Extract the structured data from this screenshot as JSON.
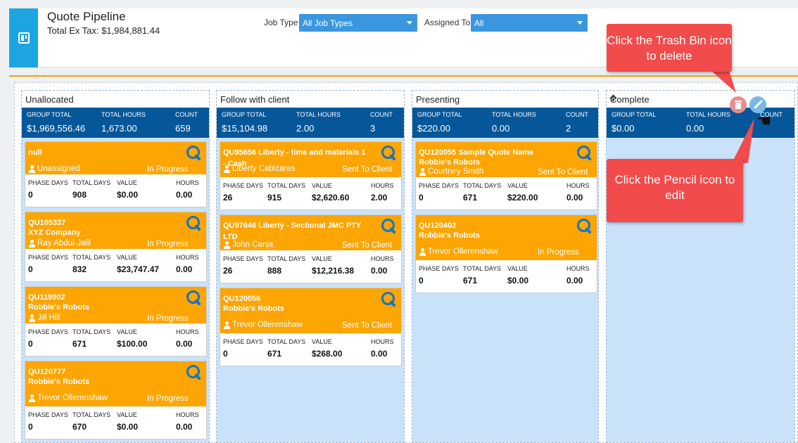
{
  "header": {
    "title": "Quote Pipeline",
    "total": "Total Ex Tax: $1,984,881.44",
    "job_type_label": "Job Type",
    "job_type_value": "All Job Types",
    "assigned_label": "Assigned To",
    "assigned_value": "All"
  },
  "stat_labels": {
    "group_total": "GROUP TOTAL",
    "total_hours": "TOTAL HOURS",
    "count": "COUNT"
  },
  "metric_labels": {
    "phase_days": "PHASE DAYS",
    "total_days": "TOTAL DAYS",
    "value": "VALUE",
    "hours": "HOURS"
  },
  "columns": [
    {
      "title": "Unallocated",
      "group_total": "$1,969,556.46",
      "total_hours": "1,673.00",
      "count": "659",
      "cards": [
        {
          "id": "null",
          "client": "",
          "person": "Unassigned",
          "status": "In Progress",
          "phase_days": "0",
          "total_days": "908",
          "value": "$0.00",
          "hours": "0.00"
        },
        {
          "id": "QU105337",
          "client": "XYZ Company",
          "person": "Ray Abdul-Jalil",
          "status": "In Progress",
          "phase_days": "0",
          "total_days": "832",
          "value": "$23,747.47",
          "hours": "0.00"
        },
        {
          "id": "QU119902",
          "client": "Robbie's Robots",
          "person": "Jill Hill",
          "status": "In Progress",
          "phase_days": "0",
          "total_days": "671",
          "value": "$100.00",
          "hours": "0.00"
        },
        {
          "id": "QU120777",
          "client": "Robbie's Robots",
          "person": "Trevor Ollerenshaw",
          "status": "In Progress",
          "phase_days": "0",
          "total_days": "670",
          "value": "$0.00",
          "hours": "0.00"
        }
      ]
    },
    {
      "title": "Follow with client",
      "group_total": "$15,104.98",
      "total_hours": "2.00",
      "count": "3",
      "cards": [
        {
          "id": "QU95656 Liberty - time and materials 1 - Cash",
          "client": "",
          "person": "Liberty Cabizares",
          "status": "Sent To Client",
          "phase_days": "26",
          "total_days": "915",
          "value": "$2,620.60",
          "hours": "2.00"
        },
        {
          "id": "QU97646 Liberty - Sectional JMC PTY LTD",
          "client": "",
          "person": "John Canja",
          "status": "Sent To Client",
          "phase_days": "26",
          "total_days": "888",
          "value": "$12,216.38",
          "hours": "0.00"
        },
        {
          "id": "QU120056",
          "client": "Robbie's Robots",
          "person": "Trevor Ollerenshaw",
          "status": "Sent To Client",
          "phase_days": "0",
          "total_days": "671",
          "value": "$268.00",
          "hours": "0.00"
        }
      ]
    },
    {
      "title": "Presenting",
      "group_total": "$220.00",
      "total_hours": "0.00",
      "count": "2",
      "cards": [
        {
          "id": "QU120055 Sample Quote Name",
          "client": "Robbie's Robots",
          "person": "Courtney Smith",
          "status": "Sent To Client",
          "phase_days": "0",
          "total_days": "671",
          "value": "$220.00",
          "hours": "0.00"
        },
        {
          "id": "QU120402",
          "client": "Robbie's Robots",
          "person": "Trevor Ollerenshaw",
          "status": "In Progress",
          "phase_days": "0",
          "total_days": "671",
          "value": "$0.00",
          "hours": "0.00"
        }
      ]
    },
    {
      "title": "Complete",
      "group_total": "$0.00",
      "total_hours": "0.00",
      "count": "",
      "cards": []
    }
  ],
  "callouts": {
    "trash": "Click the Trash Bin icon to delete",
    "pencil": "Click the Pencil icon to edit"
  },
  "colors": {
    "header_blue": "#06579a",
    "card_orange": "#fca503",
    "callout_red": "#f14b4b",
    "column_bg": "#c9e2fa"
  }
}
